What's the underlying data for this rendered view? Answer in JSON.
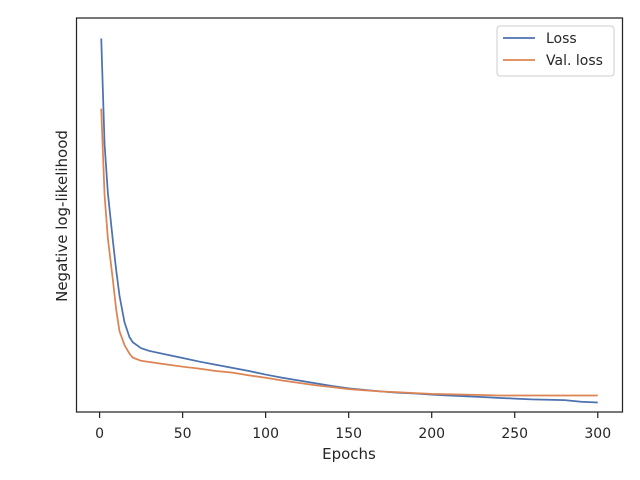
{
  "chart_data": {
    "type": "line",
    "xlabel": "Epochs",
    "ylabel": "Negative log-likelihood",
    "xlim": [
      -13.9,
      314.9
    ],
    "ylim": [
      0,
      1
    ],
    "x_ticks": [
      0,
      50,
      100,
      150,
      200,
      250,
      300
    ],
    "y_tick_labels_shown": false,
    "grid": false,
    "legend": {
      "position": "top-right",
      "entries": [
        "Loss",
        "Val. loss"
      ]
    },
    "colors": {
      "Loss": "#4c72b0",
      "Val. loss": "#dd8452"
    },
    "series": [
      {
        "name": "Loss",
        "x": [
          1,
          3,
          5,
          8,
          10,
          12,
          15,
          18,
          20,
          25,
          30,
          40,
          50,
          60,
          70,
          80,
          90,
          100,
          110,
          120,
          130,
          140,
          150,
          160,
          170,
          180,
          190,
          200,
          210,
          220,
          230,
          240,
          250,
          260,
          270,
          280,
          290,
          300
        ],
        "y": [
          0.948,
          0.68,
          0.555,
          0.435,
          0.36,
          0.295,
          0.228,
          0.19,
          0.177,
          0.162,
          0.155,
          0.146,
          0.137,
          0.128,
          0.12,
          0.112,
          0.104,
          0.095,
          0.087,
          0.08,
          0.073,
          0.066,
          0.06,
          0.056,
          0.052,
          0.049,
          0.047,
          0.044,
          0.042,
          0.04,
          0.038,
          0.036,
          0.034,
          0.032,
          0.031,
          0.03,
          0.026,
          0.024
        ]
      },
      {
        "name": "Val. loss",
        "x": [
          1,
          3,
          5,
          8,
          10,
          12,
          15,
          18,
          20,
          25,
          30,
          40,
          50,
          60,
          70,
          80,
          90,
          100,
          110,
          120,
          130,
          140,
          150,
          160,
          170,
          180,
          190,
          200,
          210,
          220,
          230,
          240,
          250,
          260,
          270,
          280,
          290,
          300
        ],
        "y": [
          0.77,
          0.55,
          0.44,
          0.335,
          0.26,
          0.205,
          0.17,
          0.148,
          0.138,
          0.13,
          0.127,
          0.121,
          0.115,
          0.11,
          0.104,
          0.1,
          0.093,
          0.087,
          0.08,
          0.074,
          0.068,
          0.063,
          0.058,
          0.055,
          0.052,
          0.05,
          0.048,
          0.046,
          0.045,
          0.044,
          0.043,
          0.042,
          0.042,
          0.042,
          0.042,
          0.042,
          0.042,
          0.042
        ]
      }
    ]
  }
}
